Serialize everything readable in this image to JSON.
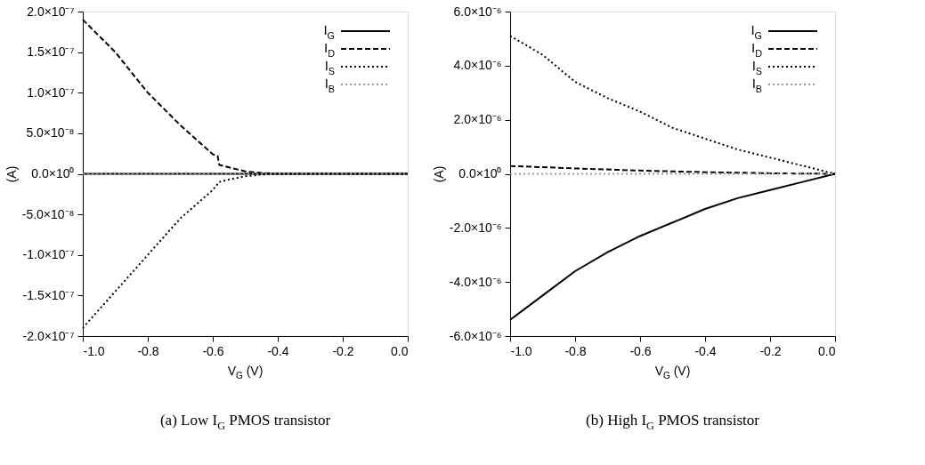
{
  "chart_data": [
    {
      "type": "line",
      "title": "(a) Low I$_{G}$ PMOS transistor",
      "xlabel": "V$_{G}$ (V)",
      "ylabel": "(A)",
      "xlim": [
        -1.0,
        0.0
      ],
      "ylim": [
        -2e-07,
        2e-07
      ],
      "xticks": [
        {
          "value": -1.0,
          "label": "-1.0"
        },
        {
          "value": -0.8,
          "label": "-0.8"
        },
        {
          "value": -0.6,
          "label": "-0.6"
        },
        {
          "value": -0.4,
          "label": "-0.4"
        },
        {
          "value": -0.2,
          "label": "-0.2"
        },
        {
          "value": 0.0,
          "label": "0.0"
        }
      ],
      "yticks": [
        {
          "value": -2e-07,
          "label": "-2.0×10⁻⁷"
        },
        {
          "value": -1.5e-07,
          "label": "-1.5×10⁻⁷"
        },
        {
          "value": -1e-07,
          "label": "-1.0×10⁻⁷"
        },
        {
          "value": -5e-08,
          "label": "-5.0×10⁻⁸"
        },
        {
          "value": 0,
          "label": "0.0×10⁰"
        },
        {
          "value": 5e-08,
          "label": "5.0×10⁻⁸"
        },
        {
          "value": 1e-07,
          "label": "1.0×10⁻⁷"
        },
        {
          "value": 1.5e-07,
          "label": "1.5×10⁻⁷"
        },
        {
          "value": 2e-07,
          "label": "2.0×10⁻⁷"
        }
      ],
      "grid": false,
      "legend": "top right",
      "series": [
        {
          "name": "I$_{G}$",
          "color": "#000000",
          "line_style": "solid",
          "x": [
            -1.0,
            0.0
          ],
          "values": [
            0,
            0
          ]
        },
        {
          "name": "I$_{D}$",
          "color": "#000000",
          "line_style": "dashed",
          "x": [
            -1.0,
            -0.9,
            -0.8,
            -0.7,
            -0.6,
            -0.585,
            -0.58,
            -0.55,
            -0.5,
            -0.45,
            -0.4,
            0.0
          ],
          "values": [
            1.9e-07,
            1.5e-07,
            1e-07,
            6e-08,
            2.4e-08,
            2.2e-08,
            1.1e-08,
            8e-09,
            3e-09,
            1e-09,
            0,
            0
          ]
        },
        {
          "name": "I$_{S}$",
          "color": "#000000",
          "line_style": "dotted",
          "x": [
            -1.0,
            -0.9,
            -0.8,
            -0.7,
            -0.6,
            -0.58,
            -0.55,
            -0.5,
            -0.45,
            -0.4,
            0.0
          ],
          "values": [
            -1.9e-07,
            -1.45e-07,
            -1e-07,
            -5.5e-08,
            -2e-08,
            -1e-08,
            -7e-09,
            -3e-09,
            -1e-09,
            0,
            0
          ]
        },
        {
          "name": "I$_{B}$",
          "color": "#999999",
          "line_style": "dotted",
          "x": [
            -1.0,
            0.0
          ],
          "values": [
            0,
            0
          ]
        }
      ]
    },
    {
      "type": "line",
      "title": "(b) High I$_{G}$ PMOS transistor",
      "xlabel": "V$_{G}$ (V)",
      "ylabel": "(A)",
      "xlim": [
        -1.0,
        0.0
      ],
      "ylim": [
        -6e-06,
        6e-06
      ],
      "xticks": [
        {
          "value": -1.0,
          "label": "-1.0"
        },
        {
          "value": -0.8,
          "label": "-0.8"
        },
        {
          "value": -0.6,
          "label": "-0.6"
        },
        {
          "value": -0.4,
          "label": "-0.4"
        },
        {
          "value": -0.2,
          "label": "-0.2"
        },
        {
          "value": 0.0,
          "label": "0.0"
        }
      ],
      "yticks": [
        {
          "value": -6e-06,
          "label": "-6.0×10⁻⁶"
        },
        {
          "value": -4e-06,
          "label": "-4.0×10⁻⁶"
        },
        {
          "value": -2e-06,
          "label": "-2.0×10⁻⁶"
        },
        {
          "value": 0,
          "label": "0.0×10⁰"
        },
        {
          "value": 2e-06,
          "label": "2.0×10⁻⁶"
        },
        {
          "value": 4e-06,
          "label": "4.0×10⁻⁶"
        },
        {
          "value": 6e-06,
          "label": "6.0×10⁻⁶"
        }
      ],
      "grid": false,
      "legend": "top right",
      "series": [
        {
          "name": "I$_{G}$",
          "color": "#000000",
          "line_style": "solid",
          "x": [
            -1.0,
            -0.9,
            -0.8,
            -0.7,
            -0.6,
            -0.5,
            -0.4,
            -0.3,
            -0.2,
            -0.1,
            0.0
          ],
          "values": [
            -5.4e-06,
            -4.5e-06,
            -3.6e-06,
            -2.9e-06,
            -2.3e-06,
            -1.8e-06,
            -1.3e-06,
            -9e-07,
            -6e-07,
            -3e-07,
            0
          ]
        },
        {
          "name": "I$_{D}$",
          "color": "#000000",
          "line_style": "dashed",
          "x": [
            -1.0,
            -0.8,
            -0.6,
            -0.4,
            -0.2,
            0.0
          ],
          "values": [
            2.9e-07,
            2e-07,
            1.2e-07,
            6e-08,
            2e-08,
            0
          ]
        },
        {
          "name": "I$_{S}$",
          "color": "#000000",
          "line_style": "dotted",
          "x": [
            -1.0,
            -0.9,
            -0.8,
            -0.7,
            -0.6,
            -0.5,
            -0.4,
            -0.3,
            -0.2,
            -0.1,
            0.0
          ],
          "values": [
            5.1e-06,
            4.4e-06,
            3.4e-06,
            2.8e-06,
            2.3e-06,
            1.7e-06,
            1.3e-06,
            9e-07,
            6e-07,
            3e-07,
            0
          ]
        },
        {
          "name": "I$_{B}$",
          "color": "#999999",
          "line_style": "dotted",
          "x": [
            -1.0,
            0.0
          ],
          "values": [
            0,
            0
          ]
        }
      ]
    }
  ]
}
